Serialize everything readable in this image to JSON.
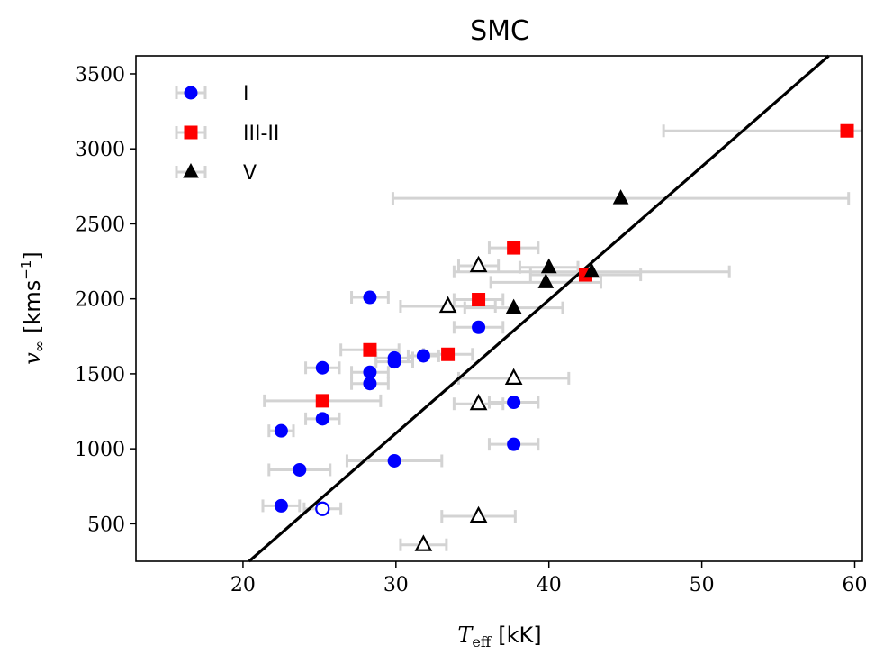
{
  "chart_data": {
    "type": "scatter",
    "title": "SMC",
    "xlabel": "T_eff [kK]",
    "xlabel_main": "T",
    "xlabel_sub": "eff",
    "xlabel_unit": "[kK]",
    "ylabel": "v_∞ [kms^-1]",
    "ylabel_main": "v",
    "ylabel_sub": "∞",
    "ylabel_unit": "[kms",
    "ylabel_exp": "−1",
    "ylabel_close": "]",
    "xlim": [
      13,
      60.5
    ],
    "ylim": [
      250,
      3620
    ],
    "xticks": [
      20,
      30,
      40,
      50,
      60
    ],
    "yticks": [
      500,
      1000,
      1500,
      2000,
      2500,
      3000,
      3500
    ],
    "legend_position": "top-left",
    "colors": {
      "I": "#0000ff",
      "III-II": "#ff0000",
      "V": "#000000",
      "errorbar": "#d3d3d3",
      "fit": "#000000"
    },
    "fit_line": {
      "x": [
        20.4,
        58.3
      ],
      "y": [
        250,
        3620
      ]
    },
    "series": [
      {
        "name": "I",
        "marker": "circle",
        "points": [
          {
            "x": 28.3,
            "y": 2010,
            "xerr": 1.2,
            "filled": true
          },
          {
            "x": 35.4,
            "y": 1810,
            "xerr": 1.6,
            "filled": true
          },
          {
            "x": 31.8,
            "y": 1620,
            "xerr": 1.0,
            "filled": true
          },
          {
            "x": 29.9,
            "y": 1605,
            "xerr": 1.2,
            "filled": true
          },
          {
            "x": 29.9,
            "y": 1580,
            "xerr": 1.2,
            "filled": true
          },
          {
            "x": 25.2,
            "y": 1540,
            "xerr": 1.1,
            "filled": true
          },
          {
            "x": 28.3,
            "y": 1510,
            "xerr": 1.2,
            "filled": true
          },
          {
            "x": 28.3,
            "y": 1435,
            "xerr": 1.2,
            "filled": true
          },
          {
            "x": 37.7,
            "y": 1310,
            "xerr": 1.6,
            "filled": true
          },
          {
            "x": 25.2,
            "y": 1200,
            "xerr": 1.1,
            "filled": true
          },
          {
            "x": 22.5,
            "y": 1120,
            "xerr": 0.8,
            "filled": true
          },
          {
            "x": 37.7,
            "y": 1030,
            "xerr": 1.6,
            "filled": true
          },
          {
            "x": 29.9,
            "y": 920,
            "xerr": 3.1,
            "filled": true
          },
          {
            "x": 23.7,
            "y": 860,
            "xerr": 2.0,
            "filled": true
          },
          {
            "x": 22.5,
            "y": 620,
            "xerr": 1.2,
            "filled": true
          },
          {
            "x": 25.2,
            "y": 600,
            "xerr": 1.2,
            "filled": false
          }
        ]
      },
      {
        "name": "III-II",
        "marker": "square",
        "points": [
          {
            "x": 59.5,
            "y": 3120,
            "xerr": 12.0,
            "filled": true
          },
          {
            "x": 37.7,
            "y": 2340,
            "xerr": 1.6,
            "filled": true
          },
          {
            "x": 42.4,
            "y": 2160,
            "xerr": 3.6,
            "filled": true
          },
          {
            "x": 35.4,
            "y": 1995,
            "xerr": 1.6,
            "filled": true
          },
          {
            "x": 28.3,
            "y": 1660,
            "xerr": 1.9,
            "filled": true
          },
          {
            "x": 33.4,
            "y": 1630,
            "xerr": 1.6,
            "filled": true
          },
          {
            "x": 25.2,
            "y": 1320,
            "xerr": 3.8,
            "filled": true
          }
        ]
      },
      {
        "name": "V",
        "marker": "triangle",
        "points": [
          {
            "x": 44.7,
            "y": 2670,
            "xerr": 14.9,
            "filled": true
          },
          {
            "x": 40.0,
            "y": 2210,
            "xerr": 1.9,
            "filled": true
          },
          {
            "x": 42.8,
            "y": 2180,
            "xerr": 9.0,
            "filled": true
          },
          {
            "x": 39.8,
            "y": 2110,
            "xerr": 3.6,
            "filled": true
          },
          {
            "x": 37.7,
            "y": 1940,
            "xerr": 3.2,
            "filled": true
          },
          {
            "x": 35.4,
            "y": 2220,
            "xerr": 1.3,
            "filled": false
          },
          {
            "x": 33.4,
            "y": 1950,
            "xerr": 3.1,
            "filled": false
          },
          {
            "x": 37.7,
            "y": 1470,
            "xerr": 3.6,
            "filled": false
          },
          {
            "x": 35.4,
            "y": 1300,
            "xerr": 1.6,
            "filled": false
          },
          {
            "x": 35.4,
            "y": 550,
            "xerr": 2.4,
            "filled": false
          },
          {
            "x": 31.8,
            "y": 360,
            "xerr": 1.5,
            "filled": false
          }
        ]
      }
    ]
  }
}
